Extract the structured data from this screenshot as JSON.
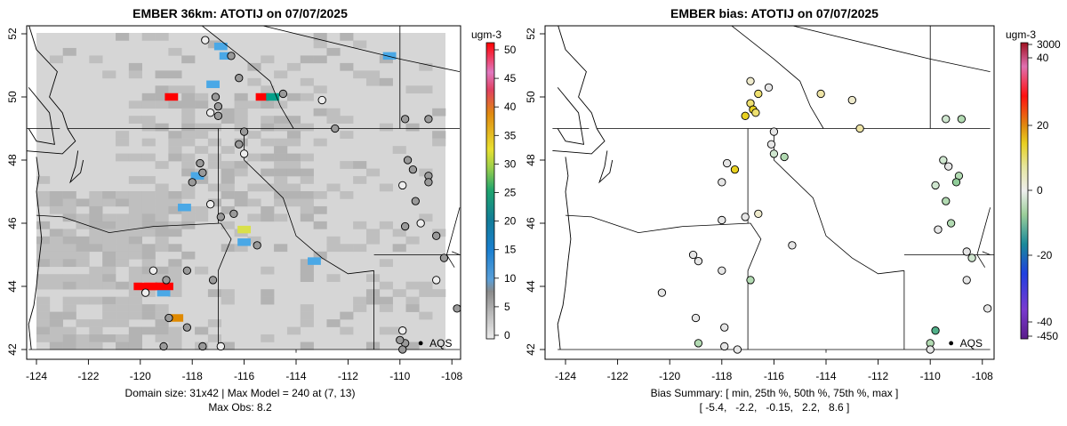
{
  "left": {
    "title": "EMBER 36km: ATOTIJ on 07/07/2025",
    "caption1": "Domain size: 31x42 | Max Model = 240 at (7, 13)",
    "caption2": "Max Obs: 8.2",
    "unit": "ugm-3",
    "colorbar_ticks": [
      "0",
      "5",
      "10",
      "15",
      "20",
      "25",
      "30",
      "35",
      "40",
      "45",
      "50"
    ],
    "legend_label": "AQS"
  },
  "right": {
    "title": "EMBER bias: ATOTIJ on 07/07/2025",
    "caption1": "Bias Summary: [ min, 25th %, 50th %, 75th %, max ]",
    "caption2": "[ -5.4,   -2.2,   -0.15,   2.2,   8.6 ]",
    "unit": "ugm-3",
    "colorbar_ticks": [
      "3000",
      "40",
      "20",
      "0",
      "-20",
      "-40",
      "-450"
    ],
    "legend_label": "AQS"
  },
  "axes": {
    "lon_ticks": [
      "-124",
      "-122",
      "-120",
      "-118",
      "-116",
      "-114",
      "-112",
      "-110",
      "-108"
    ],
    "lat_ticks": [
      "42",
      "44",
      "46",
      "48",
      "50",
      "52"
    ],
    "lon_range": [
      -124.3,
      -107.7
    ],
    "lat_range": [
      41.9,
      52.3
    ]
  },
  "colors": {
    "grid_light": "#d6d6d6",
    "grid_dark": "#bfbfbf",
    "blue": "#4aa8e6",
    "red": "#ff0000",
    "teal": "#00a08a",
    "yellow": "#d9e04a",
    "orange": "#e08a00",
    "station_gray": "#9a9a9a",
    "station_white": "#eeeeee"
  },
  "map_data": {
    "hotspots": [
      {
        "lon": -119.6,
        "lat": 44.0,
        "value": 50,
        "color": "red"
      },
      {
        "lon": -118.8,
        "lat": 50.0,
        "value": 50,
        "color": "red"
      },
      {
        "lon": -115.3,
        "lat": 50.0,
        "value": 50,
        "color": "red"
      },
      {
        "lon": -114.9,
        "lat": 50.0,
        "value": 25,
        "color": "teal"
      },
      {
        "lon": -118.6,
        "lat": 43.0,
        "value": 38,
        "color": "orange"
      },
      {
        "lon": -116.0,
        "lat": 45.8,
        "value": 28,
        "color": "yellow"
      },
      {
        "lon": -116.9,
        "lat": 51.6,
        "value": 12,
        "color": "blue"
      },
      {
        "lon": -116.7,
        "lat": 51.3,
        "value": 12,
        "color": "blue"
      },
      {
        "lon": -117.2,
        "lat": 50.4,
        "value": 12,
        "color": "blue"
      },
      {
        "lon": -117.8,
        "lat": 47.5,
        "value": 12,
        "color": "blue"
      },
      {
        "lon": -118.3,
        "lat": 46.5,
        "value": 12,
        "color": "blue"
      },
      {
        "lon": -116.0,
        "lat": 45.4,
        "value": 12,
        "color": "blue"
      },
      {
        "lon": -113.3,
        "lat": 44.8,
        "value": 12,
        "color": "blue"
      },
      {
        "lon": -110.4,
        "lat": 51.3,
        "value": 12,
        "color": "blue"
      },
      {
        "lon": -119.1,
        "lat": 43.8,
        "value": 12,
        "color": "blue"
      }
    ],
    "stations": [
      {
        "lon": -117.5,
        "lat": 51.8
      },
      {
        "lon": -116.5,
        "lat": 51.3
      },
      {
        "lon": -116.2,
        "lat": 50.6
      },
      {
        "lon": -114.5,
        "lat": 50.1
      },
      {
        "lon": -113.0,
        "lat": 49.9
      },
      {
        "lon": -112.5,
        "lat": 49.0
      },
      {
        "lon": -117.1,
        "lat": 50.0
      },
      {
        "lon": -117.0,
        "lat": 49.7
      },
      {
        "lon": -117.3,
        "lat": 49.5
      },
      {
        "lon": -117.0,
        "lat": 49.4
      },
      {
        "lon": -116.0,
        "lat": 48.9
      },
      {
        "lon": -116.2,
        "lat": 48.5
      },
      {
        "lon": -116.0,
        "lat": 48.2
      },
      {
        "lon": -117.7,
        "lat": 47.9
      },
      {
        "lon": -117.6,
        "lat": 47.6
      },
      {
        "lon": -118.0,
        "lat": 47.3
      },
      {
        "lon": -117.3,
        "lat": 46.6
      },
      {
        "lon": -116.9,
        "lat": 46.2
      },
      {
        "lon": -116.4,
        "lat": 46.3
      },
      {
        "lon": -115.5,
        "lat": 45.3
      },
      {
        "lon": -119.5,
        "lat": 44.5
      },
      {
        "lon": -119.0,
        "lat": 44.2
      },
      {
        "lon": -118.2,
        "lat": 44.5
      },
      {
        "lon": -117.2,
        "lat": 44.2
      },
      {
        "lon": -119.8,
        "lat": 43.8
      },
      {
        "lon": -118.9,
        "lat": 43.0
      },
      {
        "lon": -118.2,
        "lat": 42.7
      },
      {
        "lon": -117.6,
        "lat": 42.1
      },
      {
        "lon": -116.9,
        "lat": 42.1
      },
      {
        "lon": -119.1,
        "lat": 42.1
      },
      {
        "lon": -109.7,
        "lat": 48.0
      },
      {
        "lon": -109.5,
        "lat": 47.7
      },
      {
        "lon": -109.9,
        "lat": 47.2
      },
      {
        "lon": -108.9,
        "lat": 47.5
      },
      {
        "lon": -108.9,
        "lat": 47.3
      },
      {
        "lon": -109.4,
        "lat": 46.7
      },
      {
        "lon": -109.2,
        "lat": 46.0
      },
      {
        "lon": -109.8,
        "lat": 45.9
      },
      {
        "lon": -108.6,
        "lat": 45.6
      },
      {
        "lon": -108.3,
        "lat": 44.9
      },
      {
        "lon": -108.6,
        "lat": 44.2
      },
      {
        "lon": -107.8,
        "lat": 43.3
      },
      {
        "lon": -109.8,
        "lat": 49.3
      },
      {
        "lon": -108.9,
        "lat": 49.3
      },
      {
        "lon": -109.9,
        "lat": 42.6
      },
      {
        "lon": -109.8,
        "lat": 42.2
      },
      {
        "lon": -109.9,
        "lat": 42.0
      },
      {
        "lon": -110.0,
        "lat": 42.3
      }
    ],
    "bias_stations": [
      {
        "lon": -116.9,
        "lat": 50.5,
        "bias": 2.0
      },
      {
        "lon": -116.6,
        "lat": 50.1,
        "bias": 6.5
      },
      {
        "lon": -116.9,
        "lat": 49.8,
        "bias": 5.0
      },
      {
        "lon": -116.8,
        "lat": 49.6,
        "bias": 7.5
      },
      {
        "lon": -117.1,
        "lat": 49.4,
        "bias": 8.6
      },
      {
        "lon": -116.7,
        "lat": 49.5,
        "bias": 6.0
      },
      {
        "lon": -116.2,
        "lat": 50.3,
        "bias": 0.5
      },
      {
        "lon": -114.2,
        "lat": 50.1,
        "bias": 3.0
      },
      {
        "lon": -113.0,
        "lat": 49.9,
        "bias": 2.5
      },
      {
        "lon": -112.7,
        "lat": 49.0,
        "bias": 4.0
      },
      {
        "lon": -116.0,
        "lat": 48.9,
        "bias": 0.2
      },
      {
        "lon": -116.1,
        "lat": 48.5,
        "bias": -0.5
      },
      {
        "lon": -116.0,
        "lat": 48.2,
        "bias": -1.0
      },
      {
        "lon": -115.6,
        "lat": 48.1,
        "bias": -2.0
      },
      {
        "lon": -117.8,
        "lat": 47.9,
        "bias": 0.5
      },
      {
        "lon": -117.5,
        "lat": 47.7,
        "bias": 7.0
      },
      {
        "lon": -118.0,
        "lat": 47.3,
        "bias": 1.0
      },
      {
        "lon": -118.0,
        "lat": 46.1,
        "bias": -0.5
      },
      {
        "lon": -117.1,
        "lat": 46.2,
        "bias": 0.5
      },
      {
        "lon": -116.6,
        "lat": 46.3,
        "bias": 2.5
      },
      {
        "lon": -115.3,
        "lat": 45.3,
        "bias": 0.2
      },
      {
        "lon": -119.1,
        "lat": 45.0,
        "bias": -0.3
      },
      {
        "lon": -118.9,
        "lat": 44.8,
        "bias": 0.1
      },
      {
        "lon": -118.0,
        "lat": 44.5,
        "bias": 0.3
      },
      {
        "lon": -116.9,
        "lat": 44.2,
        "bias": -2.2
      },
      {
        "lon": -120.3,
        "lat": 43.8,
        "bias": 0.2
      },
      {
        "lon": -119.0,
        "lat": 43.0,
        "bias": -0.2
      },
      {
        "lon": -117.9,
        "lat": 42.7,
        "bias": 0.2
      },
      {
        "lon": -118.9,
        "lat": 42.2,
        "bias": -2.0
      },
      {
        "lon": -117.9,
        "lat": 42.1,
        "bias": 0.1
      },
      {
        "lon": -117.4,
        "lat": 42.0,
        "bias": -0.2
      },
      {
        "lon": -109.4,
        "lat": 49.3,
        "bias": -1.5
      },
      {
        "lon": -108.8,
        "lat": 49.3,
        "bias": -2.5
      },
      {
        "lon": -109.5,
        "lat": 48.0,
        "bias": -1.0
      },
      {
        "lon": -109.3,
        "lat": 47.8,
        "bias": -0.5
      },
      {
        "lon": -109.8,
        "lat": 47.2,
        "bias": -0.8
      },
      {
        "lon": -108.9,
        "lat": 47.5,
        "bias": -2.0
      },
      {
        "lon": -109.0,
        "lat": 47.3,
        "bias": -4.0
      },
      {
        "lon": -109.4,
        "lat": 46.7,
        "bias": -2.5
      },
      {
        "lon": -109.2,
        "lat": 46.0,
        "bias": -2.5
      },
      {
        "lon": -109.7,
        "lat": 45.8,
        "bias": -0.3
      },
      {
        "lon": -108.6,
        "lat": 45.1,
        "bias": -0.5
      },
      {
        "lon": -108.4,
        "lat": 44.9,
        "bias": -1.5
      },
      {
        "lon": -108.6,
        "lat": 44.2,
        "bias": -0.2
      },
      {
        "lon": -107.8,
        "lat": 43.3,
        "bias": 0.0
      },
      {
        "lon": -109.8,
        "lat": 42.6,
        "bias": -5.4
      },
      {
        "lon": -110.0,
        "lat": 42.2,
        "bias": -2.0
      },
      {
        "lon": -110.0,
        "lat": 42.0,
        "bias": 0.3
      }
    ],
    "aqs_legend": {
      "lon": -109.2,
      "lat": 42.2
    }
  }
}
